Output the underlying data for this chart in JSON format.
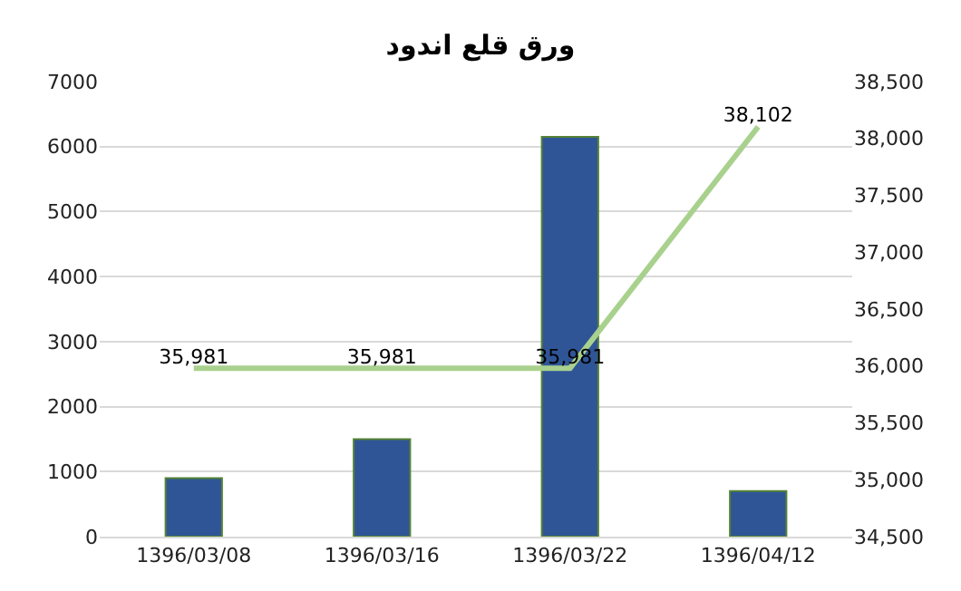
{
  "chart_data": {
    "type": "bar",
    "title": "ورق قلع اندود",
    "categories": [
      "1396/03/08",
      "1396/03/16",
      "1396/03/22",
      "1396/04/12"
    ],
    "series": [
      {
        "color": "#2f5597",
        "values": [
          900,
          1500,
          6150,
          700
        ]
      },
      {
        "type": "line",
        "axis": "y2",
        "color": "#a9d18e",
        "values": [
          35981,
          35981,
          35981,
          38102
        ],
        "value_labels": [
          "35,981",
          "35,981",
          "35,981",
          "38,102"
        ]
      }
    ],
    "ylim": [
      0,
      7000
    ],
    "yticks": [
      0,
      1000,
      2000,
      3000,
      4000,
      5000,
      6000,
      7000
    ],
    "y2lim": [
      34500,
      38500
    ],
    "y2ticks": [
      {
        "value": 34500,
        "label": "34,500"
      },
      {
        "value": 35000,
        "label": "35,000"
      },
      {
        "value": 35500,
        "label": "35,500"
      },
      {
        "value": 36000,
        "label": "36,000"
      },
      {
        "value": 36500,
        "label": "36,500"
      },
      {
        "value": 37000,
        "label": "37,000"
      },
      {
        "value": 37500,
        "label": "37,500"
      },
      {
        "value": 38000,
        "label": "38,000"
      },
      {
        "value": 38500,
        "label": "38,500"
      }
    ],
    "grid": "y",
    "legend": false,
    "marker": "none",
    "line_style": "solid"
  }
}
